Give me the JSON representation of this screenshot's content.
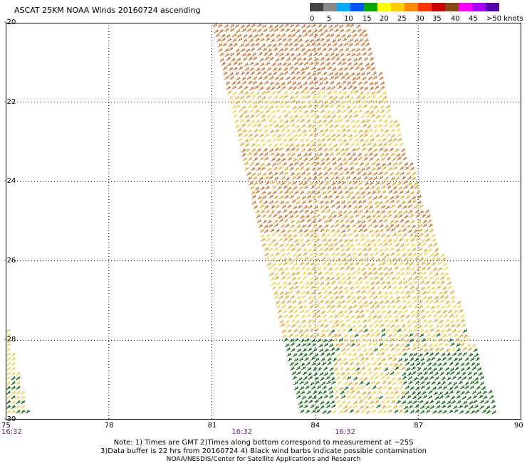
{
  "header": {
    "title": "ASCAT 25KM NOAA Winds 20160724 ascending"
  },
  "colorbar": {
    "segments": [
      {
        "color": "#444444"
      },
      {
        "color": "#888888"
      },
      {
        "color": "#00aaff"
      },
      {
        "color": "#0055ff"
      },
      {
        "color": "#00aa00"
      },
      {
        "color": "#ffff00"
      },
      {
        "color": "#ffcc00"
      },
      {
        "color": "#ff8800"
      },
      {
        "color": "#ff3300"
      },
      {
        "color": "#cc0000"
      },
      {
        "color": "#8b4513"
      },
      {
        "color": "#ff00ff"
      },
      {
        "color": "#aa00ff"
      },
      {
        "color": "#5500aa"
      }
    ],
    "labels": [
      "0",
      "5",
      "10",
      "15",
      "20",
      "25",
      "30",
      "35",
      "40",
      "45",
      ">50 knots"
    ]
  },
  "map": {
    "lat_labels": [
      "-20",
      "-22",
      "-24",
      "-26",
      "-28",
      "-30"
    ],
    "lon_labels": [
      "75",
      "78",
      "81",
      "84",
      "87",
      "90"
    ],
    "time_labels": [
      "16:32",
      "16:32",
      "16:32"
    ],
    "lat_range": [
      -30,
      -20
    ],
    "lon_range": [
      75,
      90
    ],
    "swath_colors": {
      "high": "#d2691e",
      "mid": "#e8a020",
      "low": "#f0d040",
      "calm": "#006400"
    }
  },
  "notes": {
    "line1": "Note: 1) Times are GMT  2)Times along bottom correspond to measurement at ~25S",
    "line2": "3)Data buffer is 22 hrs from 20160724  4) Black wind barbs indicate possible contamination",
    "line3": "NOAA/NESDIS/Center for Satellite Applications and Research"
  }
}
